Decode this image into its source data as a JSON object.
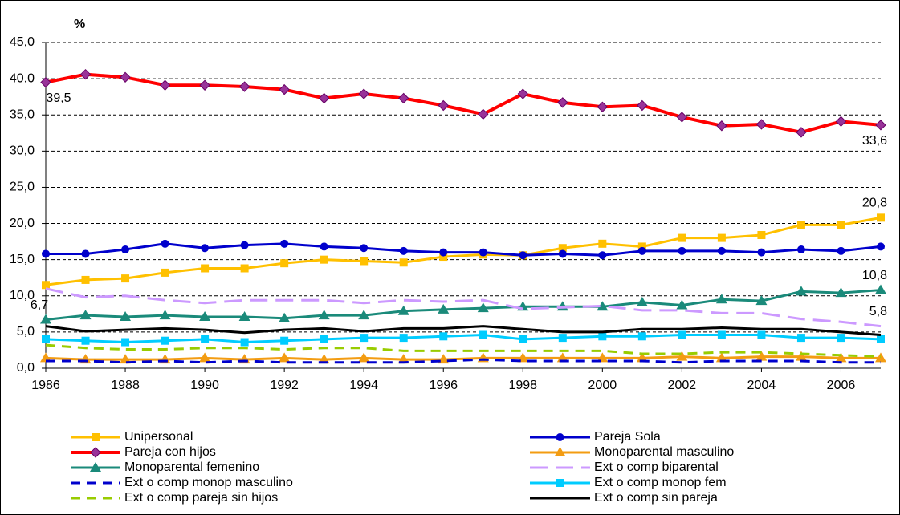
{
  "chart_data": {
    "type": "line",
    "y_unit_label": "%",
    "x": [
      1986,
      1987,
      1988,
      1989,
      1990,
      1991,
      1992,
      1993,
      1994,
      1995,
      1996,
      1997,
      1998,
      1999,
      2000,
      2001,
      2002,
      2003,
      2004,
      2005,
      2006,
      2007
    ],
    "xlim": [
      1986,
      2007
    ],
    "xticks": [
      1986,
      1988,
      1990,
      1992,
      1994,
      1996,
      1998,
      2000,
      2002,
      2004,
      2006
    ],
    "ylim": [
      0,
      45
    ],
    "yticks": [
      {
        "value": 0,
        "label": "0,0"
      },
      {
        "value": 5,
        "label": "5,0"
      },
      {
        "value": 10,
        "label": "10,0"
      },
      {
        "value": 15,
        "label": "15,0"
      },
      {
        "value": 20,
        "label": "20,0"
      },
      {
        "value": 25,
        "label": "25,0"
      },
      {
        "value": 30,
        "label": "30,0"
      },
      {
        "value": 35,
        "label": "35,0"
      },
      {
        "value": 40,
        "label": "40.0"
      },
      {
        "value": 45,
        "label": "45,0"
      }
    ],
    "grid": true,
    "legend": "bottom",
    "series": [
      {
        "name": "Unipersonal",
        "color": "#ffc000",
        "marker": "square",
        "dash": "solid",
        "values": [
          11.5,
          12.2,
          12.4,
          13.2,
          13.8,
          13.8,
          14.5,
          15.0,
          14.8,
          14.6,
          15.4,
          15.7,
          15.6,
          16.6,
          17.2,
          16.8,
          18.0,
          18.0,
          18.4,
          19.8,
          19.8,
          20.8
        ],
        "value_labels": [
          null,
          null,
          null,
          null,
          null,
          null,
          null,
          null,
          null,
          null,
          null,
          null,
          null,
          null,
          null,
          null,
          null,
          null,
          null,
          null,
          null,
          "20,8"
        ]
      },
      {
        "name": "Pareja Sola",
        "color": "#0000cc",
        "marker": "circle",
        "dash": "solid",
        "values": [
          15.8,
          15.8,
          16.4,
          17.2,
          16.6,
          17.0,
          17.2,
          16.8,
          16.6,
          16.2,
          16.0,
          16.0,
          15.6,
          15.8,
          15.6,
          16.2,
          16.2,
          16.2,
          16.0,
          16.4,
          16.2,
          16.8
        ]
      },
      {
        "name": "Pareja con hijos",
        "color": "#ff0000",
        "marker": "diamond",
        "marker_color": "#993399",
        "dash": "solid",
        "width": 4,
        "label_pos": "below",
        "values": [
          39.5,
          40.6,
          40.2,
          39.1,
          39.1,
          38.9,
          38.5,
          37.3,
          37.9,
          37.3,
          36.3,
          35.1,
          37.9,
          36.7,
          36.1,
          36.3,
          34.7,
          33.5,
          33.7,
          32.6,
          34.1,
          33.6
        ],
        "value_labels": [
          "39,5",
          null,
          null,
          null,
          null,
          null,
          null,
          null,
          null,
          null,
          null,
          null,
          null,
          null,
          null,
          null,
          null,
          null,
          null,
          null,
          null,
          "33,6"
        ]
      },
      {
        "name": "Monoparental masculino",
        "color": "#f39c12",
        "marker": "triangle",
        "dash": "solid",
        "values": [
          1.4,
          1.2,
          1.2,
          1.2,
          1.4,
          1.2,
          1.4,
          1.2,
          1.4,
          1.2,
          1.2,
          1.4,
          1.4,
          1.4,
          1.4,
          1.4,
          1.6,
          1.4,
          1.6,
          1.6,
          1.4,
          1.4
        ]
      },
      {
        "name": "Monoparental femenino",
        "color": "#1a8a7a",
        "marker": "triangle",
        "dash": "solid",
        "values": [
          6.7,
          7.3,
          7.1,
          7.3,
          7.1,
          7.1,
          6.9,
          7.3,
          7.3,
          7.9,
          8.1,
          8.3,
          8.5,
          8.5,
          8.5,
          9.1,
          8.7,
          9.5,
          9.3,
          10.6,
          10.4,
          10.8
        ],
        "value_labels": [
          "6,7",
          null,
          null,
          null,
          null,
          null,
          null,
          null,
          null,
          null,
          null,
          null,
          null,
          null,
          null,
          null,
          null,
          null,
          null,
          null,
          null,
          "10,8"
        ]
      },
      {
        "name": "Ext o comp biparental",
        "color": "#cc99ff",
        "marker": "none",
        "dash": "long",
        "values": [
          11.0,
          9.8,
          10.0,
          9.4,
          9.0,
          9.4,
          9.4,
          9.4,
          9.0,
          9.4,
          9.2,
          9.4,
          8.2,
          8.4,
          8.6,
          8.0,
          8.0,
          7.6,
          7.6,
          6.8,
          6.4,
          5.8
        ],
        "value_labels": [
          null,
          null,
          null,
          null,
          null,
          null,
          null,
          null,
          null,
          null,
          null,
          null,
          null,
          null,
          null,
          null,
          null,
          null,
          null,
          null,
          null,
          "5,8"
        ]
      },
      {
        "name": "Ext o comp monop masculino",
        "color": "#0000cc",
        "marker": "none",
        "dash": "dash",
        "values": [
          1.0,
          1.0,
          0.8,
          1.0,
          0.8,
          1.0,
          0.8,
          0.8,
          0.8,
          0.8,
          1.0,
          1.2,
          1.0,
          1.0,
          1.0,
          1.0,
          0.8,
          1.0,
          1.0,
          1.0,
          0.8,
          0.8
        ]
      },
      {
        "name": "Ext o comp monop fem",
        "color": "#00ccff",
        "marker": "square",
        "dash": "solid",
        "values": [
          4.0,
          3.8,
          3.6,
          3.8,
          4.0,
          3.6,
          3.8,
          4.0,
          4.2,
          4.2,
          4.4,
          4.6,
          4.0,
          4.2,
          4.4,
          4.4,
          4.6,
          4.6,
          4.6,
          4.2,
          4.2,
          4.0
        ]
      },
      {
        "name": "Ext o comp pareja sin hijos",
        "color": "#99cc00",
        "marker": "none",
        "dash": "dash",
        "values": [
          3.2,
          2.8,
          2.6,
          2.6,
          2.8,
          2.8,
          2.6,
          2.8,
          2.8,
          2.4,
          2.4,
          2.4,
          2.4,
          2.4,
          2.4,
          2.0,
          2.0,
          2.2,
          2.2,
          2.0,
          1.8,
          1.6
        ]
      },
      {
        "name": "Ext o comp sin pareja",
        "color": "#000000",
        "marker": "none",
        "dash": "solid",
        "values": [
          5.8,
          5.1,
          5.3,
          5.5,
          5.3,
          4.9,
          5.3,
          5.5,
          5.1,
          5.5,
          5.5,
          5.8,
          5.4,
          5.0,
          5.0,
          5.4,
          5.4,
          5.6,
          5.4,
          5.4,
          5.0,
          4.6
        ]
      }
    ]
  }
}
